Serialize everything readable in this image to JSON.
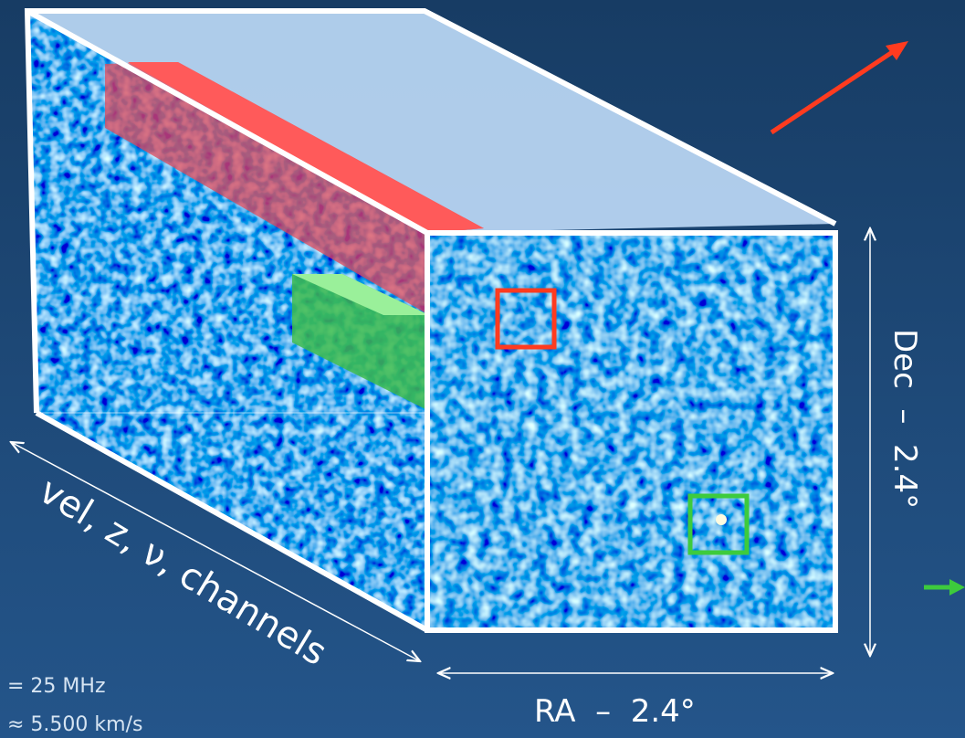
{
  "labels": {
    "channels": "vel, z, ν, channels",
    "ra": "RA  –  2.4°",
    "dec": "Dec  –  2.4°",
    "bandwidth": "= 25 MHz",
    "velocity": "≈ 5.500 km/s"
  }
}
